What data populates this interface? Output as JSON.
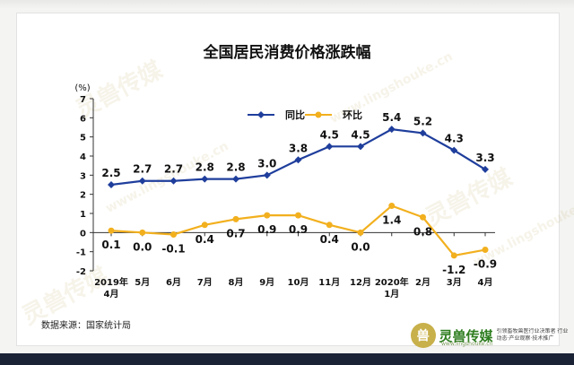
{
  "chart_data": {
    "type": "line",
    "title": "全国居民消费价格涨跌幅",
    "ylabel": "(%)",
    "ylim": [
      -2,
      7
    ],
    "yticks": [
      "-2",
      "-1",
      "0",
      "1",
      "2",
      "3",
      "4",
      "5",
      "6",
      "7"
    ],
    "categories": [
      "2019年\n4月",
      "5月",
      "6月",
      "7月",
      "8月",
      "9月",
      "10月",
      "11月",
      "12月",
      "2020年\n1月",
      "2月",
      "3月",
      "4月"
    ],
    "legend_position": "top-center",
    "grid": false,
    "series": [
      {
        "name": "同比",
        "color": "#1f3e9c",
        "marker": "diamond",
        "values": [
          2.5,
          2.7,
          2.7,
          2.8,
          2.8,
          3.0,
          3.8,
          4.5,
          4.5,
          5.4,
          5.2,
          4.3,
          3.3
        ],
        "labels": [
          "2.5",
          "2.7",
          "2.7",
          "2.8",
          "2.8",
          "3.0",
          "3.8",
          "4.5",
          "4.5",
          "5.4",
          "5.2",
          "4.3",
          "3.3"
        ]
      },
      {
        "name": "环比",
        "color": "#f2b01e",
        "marker": "circle",
        "values": [
          0.1,
          0.0,
          -0.1,
          0.4,
          0.7,
          0.9,
          0.9,
          0.4,
          0.0,
          1.4,
          0.8,
          -1.2,
          -0.9
        ],
        "labels": [
          "0.1",
          "0.0",
          "-0.1",
          "0.4",
          "0.7",
          "0.9",
          "0.9",
          "0.4",
          "0.0",
          "1.4",
          "0.8",
          "-1.2",
          "-0.9"
        ]
      }
    ]
  },
  "footer": {
    "source": "数据来源：国家统计局",
    "brand_logo_char": "兽",
    "brand_name": "灵兽传媒",
    "brand_tagline": "引领畜牧兽医行业决策者 行业动态·产业观察·技术推广",
    "brand_url": "www.lingshouke.cn"
  },
  "watermarks": [
    "灵兽传媒",
    "www.lingshouke.cn",
    "灵兽传媒",
    "www.lingshouke.cn",
    "灵兽传媒",
    "www.lingshouke.cn"
  ]
}
